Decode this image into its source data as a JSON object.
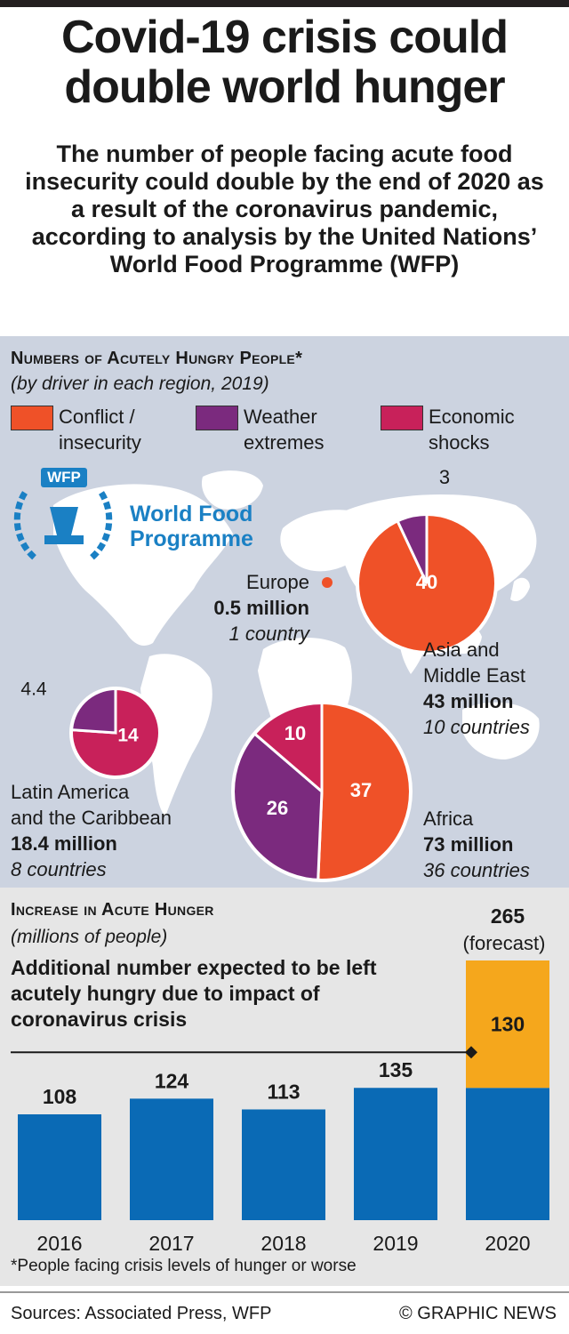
{
  "header": {
    "title_line1": "Covid-19 crisis could",
    "title_line2": "double world hunger",
    "subtitle": "The number of people facing acute food insecurity could double by the end of 2020 as a result of the coronavirus pandemic, according to analysis by the United Nations’ World Food Programme (WFP)"
  },
  "wfp_logo": {
    "acronym": "WFP",
    "name_line1": "World Food",
    "name_line2": "Programme"
  },
  "colors": {
    "conflict": "#ef5128",
    "weather": "#7b2a7e",
    "economic": "#c8215a",
    "bar": "#0a6ab5",
    "forecast": "#f5a71c",
    "map_bg": "#ccd3e0",
    "land": "#ffffff"
  },
  "chart_data": [
    {
      "type": "pie",
      "title": "Numbers of Acutely Hungry People*",
      "subtitle": "(by driver in each region, 2019)",
      "legend": [
        {
          "key": "conflict",
          "label": "Conflict /\ninsecurity"
        },
        {
          "key": "weather",
          "label": "Weather\nextremes"
        },
        {
          "key": "economic",
          "label": "Economic\nshocks"
        }
      ],
      "regions": [
        {
          "id": "asia",
          "name": "Asia and\nMiddle East",
          "total": "43 million",
          "countries": "10 countries",
          "slices": [
            {
              "key": "conflict",
              "value": 40,
              "label": "40"
            },
            {
              "key": "weather",
              "value": 3,
              "label": "3"
            }
          ]
        },
        {
          "id": "latam",
          "name": "Latin America\nand the Caribbean",
          "total": "18.4 million",
          "countries": "8 countries",
          "slices": [
            {
              "key": "economic",
              "value": 14,
              "label": "14"
            },
            {
              "key": "weather",
              "value": 4.4,
              "label": "4.4"
            }
          ]
        },
        {
          "id": "africa",
          "name": "Africa",
          "total": "73 million",
          "countries": "36 countries",
          "slices": [
            {
              "key": "conflict",
              "value": 37,
              "label": "37"
            },
            {
              "key": "weather",
              "value": 26,
              "label": "26"
            },
            {
              "key": "economic",
              "value": 10,
              "label": "10"
            }
          ]
        }
      ],
      "europe": {
        "name": "Europe",
        "total": "0.5 million",
        "countries": "1 country"
      }
    },
    {
      "type": "bar",
      "title": "Increase in Acute Hunger",
      "subtitle": "(millions of people)",
      "annotation": "Additional number expected to be left acutely hungry due to impact of coronavirus crisis",
      "categories": [
        "2016",
        "2017",
        "2018",
        "2019",
        "2020"
      ],
      "values": [
        108,
        124,
        113,
        135,
        135
      ],
      "additional_2020": 130,
      "total_2020": 265,
      "labels": [
        "108",
        "124",
        "113",
        "135"
      ],
      "additional_label": "130",
      "total_label": "265",
      "forecast_label": "(forecast)",
      "ymax": 265
    }
  ],
  "footnote": "*People facing crisis levels of hunger or worse",
  "footer": {
    "sources": "Sources: Associated Press, WFP",
    "credit": "© GRAPHIC NEWS"
  }
}
